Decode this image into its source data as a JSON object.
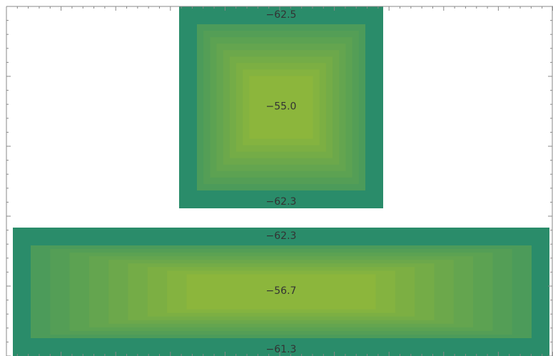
{
  "chart_data": {
    "type": "heatmap",
    "title": "",
    "xlabel": "",
    "ylabel": "",
    "grid": false,
    "legend": "none",
    "frame_ticks": true,
    "colors": {
      "edge": "#2a8c6a",
      "center": "#8cb63c",
      "label": "#333333",
      "frame": "#888888",
      "background": "#ffffff"
    },
    "regions": [
      {
        "name": "upper",
        "shape": "square",
        "edge_value": -62.4,
        "center_value": -55.0,
        "labels": [
          {
            "text": "−62.5",
            "position": "top"
          },
          {
            "text": "−55.0",
            "position": "center"
          },
          {
            "text": "−62.3",
            "position": "bottom"
          }
        ]
      },
      {
        "name": "lower",
        "shape": "wide-rectangle",
        "edge_value": -61.8,
        "center_value": -56.7,
        "labels": [
          {
            "text": "−62.3",
            "position": "top"
          },
          {
            "text": "−56.7",
            "position": "center"
          },
          {
            "text": "−61.3",
            "position": "bottom"
          }
        ]
      }
    ]
  }
}
